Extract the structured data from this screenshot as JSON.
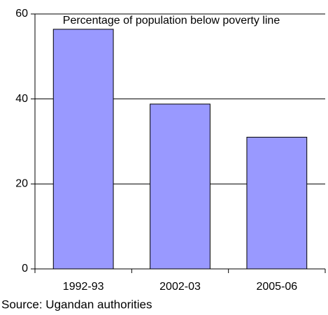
{
  "chart_data": {
    "type": "bar",
    "title": "Percentage of population below poverty line",
    "categories": [
      "1992-93",
      "2002-03",
      "2005-06"
    ],
    "values": [
      56.4,
      38.8,
      31.0
    ],
    "color": "#9999ff",
    "ylim": [
      0,
      60
    ],
    "yticks": [
      0,
      20,
      40,
      60
    ],
    "grid": true,
    "source": "Source: Ugandan authorities"
  }
}
